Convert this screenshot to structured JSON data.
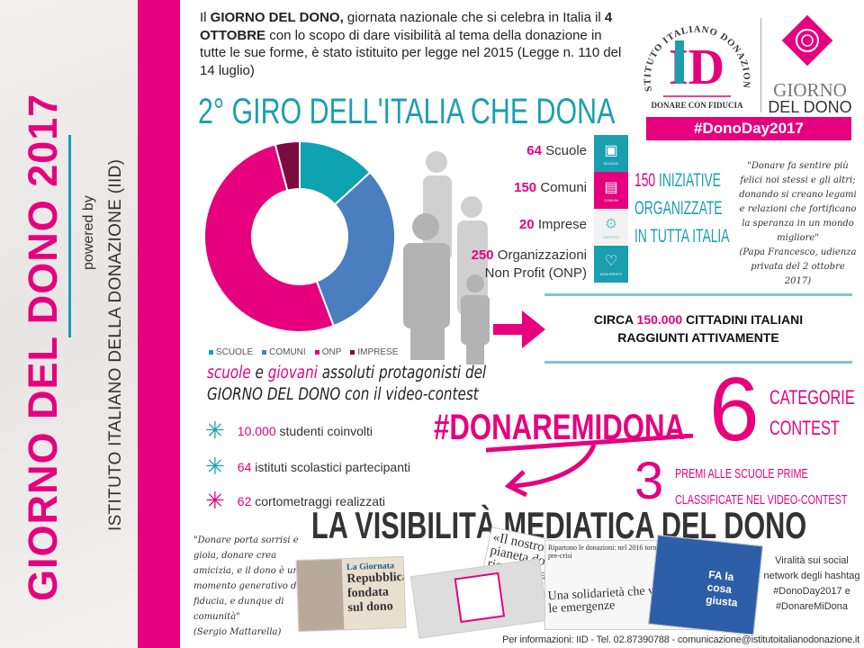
{
  "sidebar": {
    "title": "GIORNO DEL DONO 2017",
    "powered_by": "powered by",
    "org": "ISTITUTO ITALIANO DELLA DONAZIONE (IID)"
  },
  "intro": {
    "p1_bold": "GIORNO DEL DONO,",
    "p1_pre": "Il ",
    "p1_rest": " giornata nazionale che si celebra in Italia il ",
    "p2_bold": "4 OTTOBRE",
    "p2_rest": " con lo scopo di dare visibilità al tema della donazione in tutte le sue forme, è stato istituito per legge nel 2015 (Legge n. 110 del 14 luglio)"
  },
  "giro_title": "2° GIRO DELL'ITALIA CHE DONA",
  "logos": {
    "iid_arc": "ISTITUTO ITALIANO DONAZIONE",
    "iid_mark": "ID",
    "iid_tagline": "DONARE CON FIDUCIA",
    "gdd_line1": "GIORNO",
    "gdd_line2": "DEL DONO",
    "hashtag": "#DonoDay2017"
  },
  "chart_data": {
    "type": "pie",
    "style": "donut",
    "categories": [
      "SCUOLE",
      "COMUNI",
      "ONP",
      "IMPRESE"
    ],
    "values": [
      64,
      150,
      250,
      20
    ],
    "colors": [
      "#0fa3b1",
      "#4a7ebf",
      "#e6007e",
      "#7a0c3e"
    ],
    "legend_placement": "bottom"
  },
  "categories": [
    {
      "num": "64",
      "label": "Scuole",
      "icon": "book-icon",
      "icon_label": "SCUOLE",
      "color": "#1a9fb0"
    },
    {
      "num": "150",
      "label": "Comuni",
      "icon": "building-icon",
      "icon_label": "COMUNI",
      "color": "#e6007e"
    },
    {
      "num": "20",
      "label": "Imprese",
      "icon": "gears-icon",
      "icon_label": "IMPRESE",
      "color": "#f2f2f2"
    },
    {
      "num": "250",
      "label": "Organizzazioni",
      "label2": "Non Profit (ONP)",
      "icon": "heart-icon",
      "icon_label": "NON PROFIT",
      "color": "#1a9fb0"
    }
  ],
  "iniziative": {
    "num": "150",
    "l1": " INIZIATIVE",
    "l2": "ORGANIZZATE",
    "l3": "IN TUTTA ITALIA"
  },
  "papa_quote": {
    "text": "\"Donare fa sentire più felici noi stessi e gli altri; donando si creano legami e relazioni che fortificano la speranza in un mondo migliore\"",
    "source": "(Papa Francesco, udienza privata del 2 ottobre 2017)"
  },
  "circa": {
    "l1_pre": "CIRCA ",
    "l1_num": "150.000",
    "l1_rest": " CITTADINI ITALIANI",
    "l2": "RAGGIUNTI ATTIVAMENTE"
  },
  "contest": {
    "w1": "scuole",
    "w2": " e ",
    "w3": "giovani",
    "w4": " assoluti protagonisti del",
    "line2": "GIORNO DEL DONO con il video-contest"
  },
  "bullets": [
    {
      "num": "10.000",
      "text": " studenti coinvolti"
    },
    {
      "num": "64",
      "text": " istituti scolastici partecipanti"
    },
    {
      "num": "62",
      "text": " cortometraggi realizzati"
    }
  ],
  "hashtag_contest": "#DONAREMIDONA",
  "six": {
    "num": "6",
    "l1": "CATEGORIE",
    "l2": "CONTEST"
  },
  "three": {
    "num": "3",
    "l1": "PREMI ALLE SCUOLE PRIME",
    "l2": "CLASSIFICATE NEL VIDEO-CONTEST"
  },
  "visibilita_title": "LA VISIBILITÀ MEDIATICA DEL DONO",
  "mattarella_quote": {
    "text": "\"Donare porta sorrisi e gioia, donare crea amicizia, e il dono è un momento generativo di fiducia, e dunque di comunità\"",
    "source": "(Sergio Mattarella)"
  },
  "media": {
    "clip1_kicker": "La Giornata",
    "clip1_head": "Repubblica fondata sul dono",
    "clip2_head": "«Il nostro pianeta dono ricevuto da co",
    "clip3_top": "Ripartono le donazioni: nel 2016 tornate ai livelli pre-crisi",
    "clip3_head": "Una solidarietà che va oltre le emergenze",
    "clip4_head": "FA la cosa giusta"
  },
  "viral": "Viralità sui social network degli hashtag #DonoDay2017 e #DonareMiDona",
  "footer": "Per informazioni: IID - Tel. 02.87390788 - comunicazione@istitutoitalianodonazione.it"
}
